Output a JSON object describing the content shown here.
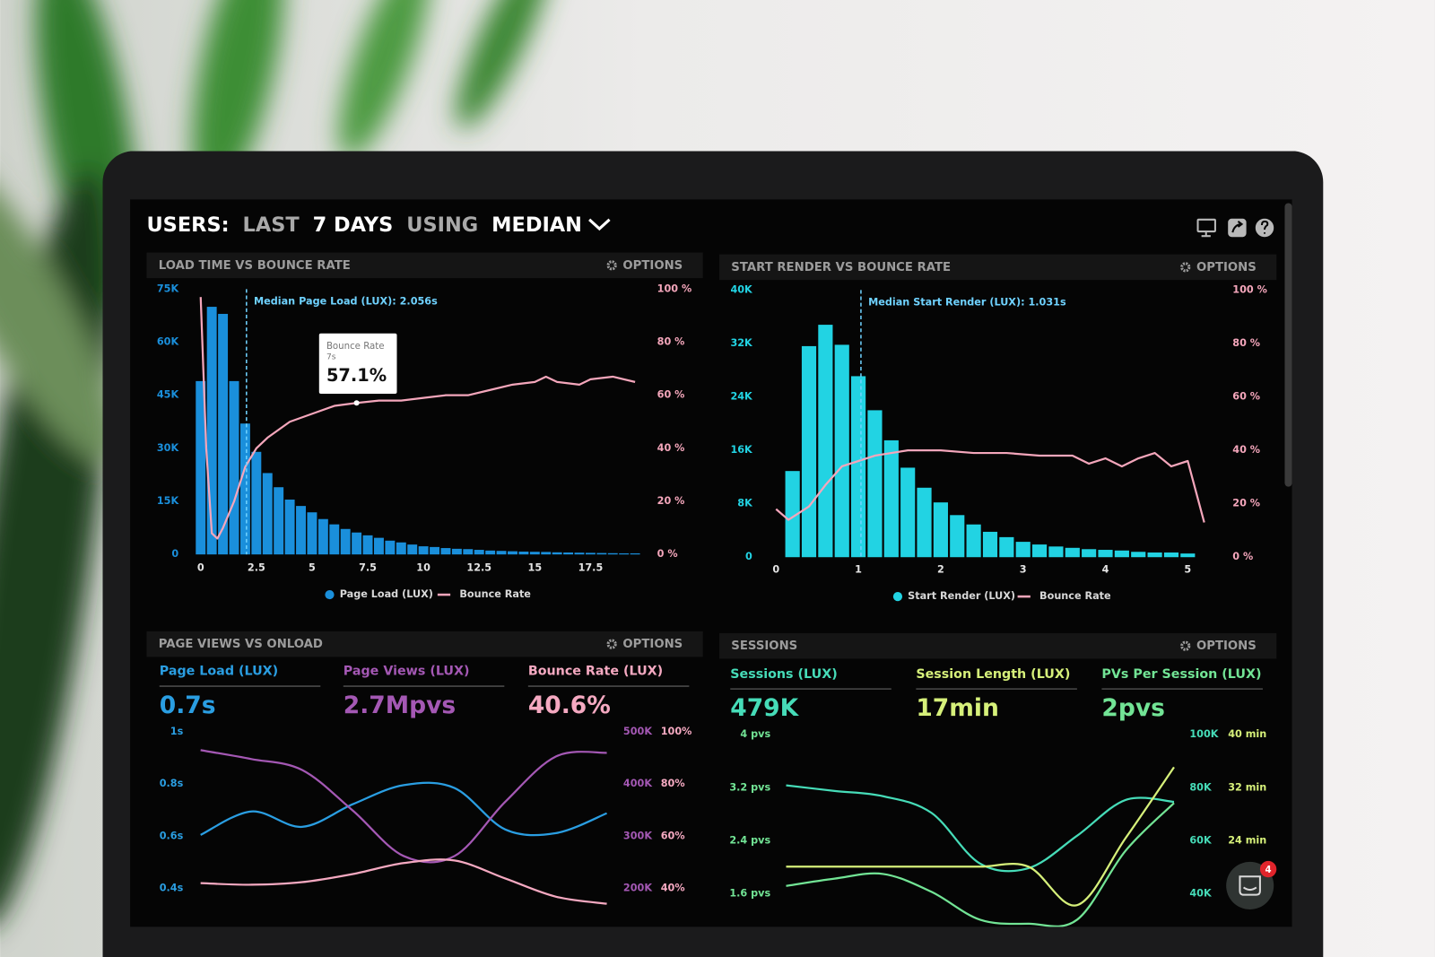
{
  "header": {
    "title": [
      "USERS:",
      "LAST",
      "7 DAYS",
      "USING",
      "MEDIAN"
    ]
  },
  "panels": [
    {
      "title": "LOAD TIME VS BOUNCE RATE",
      "options": "OPTIONS"
    },
    {
      "title": "START RENDER VS BOUNCE RATE",
      "options": "OPTIONS"
    },
    {
      "title": "PAGE VIEWS VS ONLOAD",
      "options": "OPTIONS"
    },
    {
      "title": "SESSIONS",
      "options": "OPTIONS"
    }
  ],
  "chat": {
    "badge": "4"
  },
  "chart_data": [
    {
      "type": "bar_line",
      "xlim": [
        -0.25,
        19.75
      ],
      "xticks": [
        0,
        2.5,
        5,
        7.5,
        10,
        12.5,
        15,
        17.5
      ],
      "ylim": [
        0,
        75000
      ],
      "yticks": [
        0,
        {
          "value": 15000,
          "label": "15K"
        },
        {
          "value": 30000,
          "label": "30K"
        },
        {
          "value": 45000,
          "label": "45K"
        },
        {
          "value": 60000,
          "label": "60K"
        },
        {
          "value": 75000,
          "label": "75K"
        }
      ],
      "y2lim": [
        0,
        100
      ],
      "y2ticks": [
        {
          "value": 0,
          "label": "0 %"
        },
        {
          "value": 20,
          "label": "20 %"
        },
        {
          "value": 40,
          "label": "40 %"
        },
        {
          "value": 60,
          "label": "60 %"
        },
        {
          "value": 80,
          "label": "80 %"
        },
        {
          "value": 100,
          "label": "100 %"
        }
      ],
      "series": [
        {
          "name": "Page Load (LUX)",
          "type": "bar",
          "color": "#1a8fdb",
          "x": [
            0,
            0.5,
            1,
            1.5,
            2,
            2.5,
            3,
            3.5,
            4,
            4.5,
            5,
            5.5,
            6,
            6.5,
            7,
            7.5,
            8,
            8.5,
            9,
            9.5,
            10,
            10.5,
            11,
            11.5,
            12,
            12.5,
            13,
            13.5,
            14,
            14.5,
            15,
            15.5,
            16,
            16.5,
            17,
            17.5,
            18,
            18.5,
            19,
            19.5
          ],
          "values": [
            49000,
            70000,
            68000,
            49000,
            37000,
            29000,
            23000,
            19000,
            15500,
            13700,
            11900,
            10000,
            8500,
            7200,
            6200,
            5400,
            4700,
            3900,
            3400,
            2800,
            2300,
            2100,
            1800,
            1600,
            1500,
            1300,
            1100,
            1000,
            900,
            800,
            750,
            700,
            600,
            550,
            500,
            450,
            400,
            350,
            300,
            300
          ]
        },
        {
          "name": "Bounce Rate",
          "type": "line",
          "axis": "y2",
          "color": "#f4a6bb",
          "x": [
            0,
            0.25,
            0.5,
            0.75,
            1,
            1.5,
            2,
            2.5,
            3,
            4,
            5,
            6,
            7,
            8,
            9,
            10,
            11,
            12,
            13,
            14,
            15,
            15.5,
            16,
            17,
            17.5,
            18.5,
            19.5
          ],
          "values": [
            97,
            40,
            8,
            6,
            10,
            20,
            33,
            40,
            44,
            50,
            53,
            56,
            57.1,
            58,
            58,
            59,
            60,
            60,
            62,
            64,
            65,
            67,
            65,
            64,
            66,
            67,
            65
          ]
        }
      ],
      "annotations": [
        {
          "text": "Median Page Load (LUX): 2.056s",
          "x": 2.056
        }
      ],
      "tooltip": {
        "label": "Bounce Rate",
        "x": 7,
        "x_label": "7s",
        "value": 57.1,
        "value_label": "57.1%"
      }
    },
    {
      "type": "bar_line",
      "xlim": [
        0,
        5.3
      ],
      "xticks": [
        0,
        1,
        2,
        3,
        4,
        5
      ],
      "ylim": [
        0,
        40000
      ],
      "yticks": [
        0,
        {
          "value": 8000,
          "label": "8K"
        },
        {
          "value": 16000,
          "label": "16K"
        },
        {
          "value": 24000,
          "label": "24K"
        },
        {
          "value": 32000,
          "label": "32K"
        },
        {
          "value": 40000,
          "label": "40K"
        }
      ],
      "y2lim": [
        0,
        100
      ],
      "y2ticks": [
        {
          "value": 0,
          "label": "0 %"
        },
        {
          "value": 20,
          "label": "20 %"
        },
        {
          "value": 40,
          "label": "40 %"
        },
        {
          "value": 60,
          "label": "60 %"
        },
        {
          "value": 80,
          "label": "80 %"
        },
        {
          "value": 100,
          "label": "100 %"
        }
      ],
      "series": [
        {
          "name": "Start Render (LUX)",
          "type": "bar",
          "color": "#22d3e3",
          "x": [
            0.2,
            0.4,
            0.6,
            0.8,
            1,
            1.2,
            1.4,
            1.6,
            1.8,
            2,
            2.2,
            2.4,
            2.6,
            2.8,
            3,
            3.2,
            3.4,
            3.6,
            3.8,
            4,
            4.2,
            4.4,
            4.6,
            4.8,
            5
          ],
          "values": [
            12900,
            31600,
            34800,
            31800,
            27100,
            22000,
            17500,
            13400,
            10400,
            8200,
            6300,
            4900,
            3800,
            3000,
            2300,
            1900,
            1600,
            1400,
            1200,
            1100,
            1000,
            800,
            700,
            700,
            550
          ]
        },
        {
          "name": "Bounce Rate",
          "type": "line",
          "axis": "y2",
          "color": "#f4a6bb",
          "x": [
            0,
            0.15,
            0.4,
            0.6,
            0.8,
            1,
            1.2,
            1.4,
            1.6,
            2,
            2.4,
            2.8,
            3.2,
            3.6,
            3.8,
            4,
            4.2,
            4.4,
            4.6,
            4.8,
            5,
            5.2
          ],
          "values": [
            18,
            14,
            19,
            27,
            34,
            36,
            38,
            39,
            40,
            40,
            39,
            39,
            38,
            38,
            35,
            37,
            34,
            37,
            39,
            34,
            36,
            13
          ]
        }
      ],
      "annotations": [
        {
          "text": "Median Start Render (LUX): 1.031s",
          "x": 1.031
        }
      ]
    },
    {
      "type": "multi_line",
      "ylim": [
        0.3,
        1.05
      ],
      "yticks": [
        {
          "value": 1,
          "label": "1s"
        },
        {
          "value": 0.8,
          "label": "0.8s"
        },
        {
          "value": 0.6,
          "label": "0.6s"
        },
        {
          "value": 0.4,
          "label": "0.4s"
        }
      ],
      "y2lim": [
        150000,
        525000
      ],
      "y2ticks": [
        {
          "value": 500000,
          "label": "500K"
        },
        {
          "value": 400000,
          "label": "400K"
        },
        {
          "value": 300000,
          "label": "300K"
        },
        {
          "value": 200000,
          "label": "200K"
        }
      ],
      "y3lim": [
        30,
        105
      ],
      "y3ticks": [
        {
          "value": 100,
          "label": "100%"
        },
        {
          "value": 80,
          "label": "80%"
        },
        {
          "value": 60,
          "label": "60%"
        },
        {
          "value": 40,
          "label": "40%"
        }
      ],
      "series": [
        {
          "name": "Page Load (LUX)",
          "summary": "0.7s",
          "axis": "y",
          "color": "#2a9ee2",
          "values": [
            0.605,
            0.695,
            0.636,
            0.723,
            0.796,
            0.785,
            0.626,
            0.612,
            0.688
          ]
        },
        {
          "name": "Page Views (LUX)",
          "summary": "2.7Mpvs",
          "axis": "y2",
          "color": "#a458b4",
          "values": [
            465000,
            448000,
            427000,
            349000,
            262000,
            262000,
            366000,
            453000,
            460000
          ]
        },
        {
          "name": "Bounce Rate (LUX)",
          "summary": "40.6%",
          "axis": "y3",
          "color": "#f5a9c1",
          "values": [
            42,
            41.4,
            42.4,
            45.5,
            49.7,
            50.7,
            43.8,
            36.8,
            34.1
          ]
        }
      ]
    },
    {
      "type": "multi_line",
      "ylim": [
        1.0,
        4.2
      ],
      "yticks": [
        {
          "value": 4,
          "label": "4 pvs"
        },
        {
          "value": 3.2,
          "label": "3.2 pvs"
        },
        {
          "value": 2.4,
          "label": "2.4 pvs"
        },
        {
          "value": 1.6,
          "label": "1.6 pvs"
        }
      ],
      "y2lim": [
        25000,
        105000
      ],
      "y2ticks": [
        {
          "value": 100000,
          "label": "100K"
        },
        {
          "value": 80000,
          "label": "80K"
        },
        {
          "value": 60000,
          "label": "60K"
        },
        {
          "value": 40000,
          "label": "40K"
        }
      ],
      "y3lim": [
        10,
        42
      ],
      "y3ticks": [
        {
          "value": 40,
          "label": "40 min"
        },
        {
          "value": 32,
          "label": "32 min"
        },
        {
          "value": 24,
          "label": "24 min"
        }
      ],
      "series": [
        {
          "name": "Sessions (LUX)",
          "summary": "479K",
          "axis": "y2",
          "color": "#46dcb8",
          "values": [
            80900,
            78800,
            76800,
            70500,
            51400,
            49700,
            61900,
            75400,
            74700
          ]
        },
        {
          "name": "Session Length (LUX)",
          "summary": "17min",
          "axis": "y3",
          "color": "#d6f07a",
          "values": [
            20.1,
            20.1,
            20.1,
            20.1,
            20.1,
            20.1,
            14.3,
            24.4,
            35.1
          ]
        },
        {
          "name": "PVs Per Session (LUX)",
          "summary": "2pvs",
          "axis": "y",
          "color": "#72e495",
          "values": [
            1.72,
            1.83,
            1.9,
            1.63,
            1.21,
            1.15,
            1.21,
            2.25,
            2.97
          ]
        }
      ]
    }
  ]
}
